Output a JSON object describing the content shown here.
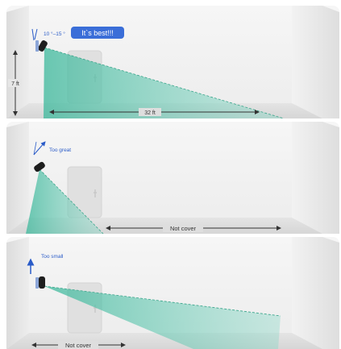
{
  "colors": {
    "room_bg": "#eeeeee",
    "wall_side": "#e2e2e2",
    "beam": "#5fc9b0",
    "accent_blue": "#2b5cc8",
    "badge_bg": "#3a6ed8",
    "text_dark": "#333333"
  },
  "panels": [
    {
      "angle_label": "10 °–15 °",
      "badge": "It`s best!!!",
      "height_label": "7 ft",
      "distance_label": "32 ft"
    },
    {
      "angle_label": "Too great",
      "coverage_label": "Not cover"
    },
    {
      "angle_label": "Too small",
      "coverage_label": "Not cover"
    }
  ]
}
